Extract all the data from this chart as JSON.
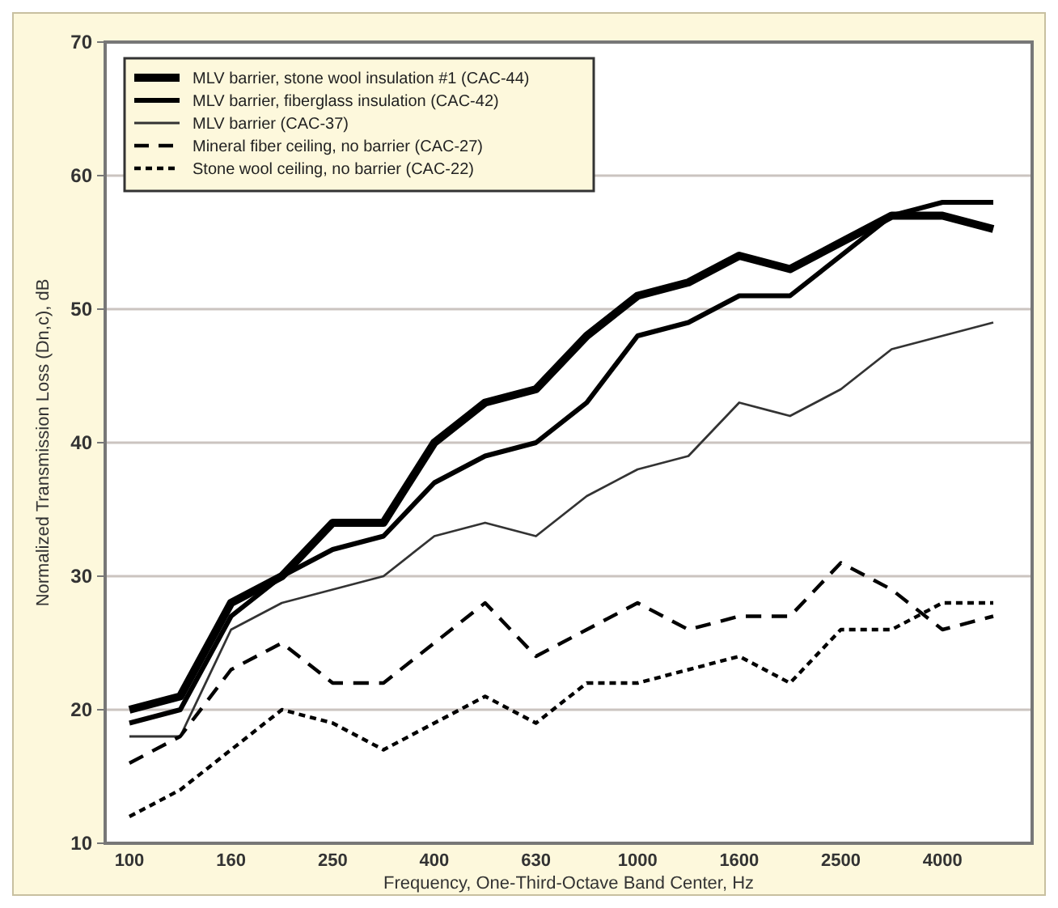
{
  "chart_data": {
    "type": "line",
    "xlabel": "Frequency, One-Third-Octave Band Center, Hz",
    "ylabel": "Normalized Transmission Loss (Dn,c), dB",
    "categories": [
      "100",
      null,
      "160",
      null,
      "250",
      null,
      "400",
      null,
      "630",
      null,
      "1000",
      null,
      "1600",
      null,
      "2500",
      null,
      "4000",
      null
    ],
    "ylim": [
      10,
      70
    ],
    "yticks": [
      10,
      20,
      30,
      40,
      50,
      60,
      70
    ],
    "grid": "y",
    "legend": "top left",
    "marker": "none",
    "series": [
      {
        "name": "MLV barrier, stone wool insulation #1 (CAC-44)",
        "color": "#000000",
        "line_style": "solid",
        "values": [
          20,
          21,
          28,
          30,
          34,
          34,
          40,
          43,
          44,
          48,
          51,
          52,
          54,
          53,
          55,
          57,
          57,
          56
        ]
      },
      {
        "name": "MLV barrier, fiberglass insulation (CAC-42)",
        "color": "#000000",
        "line_style": "solid",
        "values": [
          19,
          20,
          27,
          30,
          32,
          33,
          37,
          39,
          40,
          43,
          48,
          49,
          51,
          51,
          54,
          57,
          58,
          58
        ]
      },
      {
        "name": "MLV barrier (CAC-37)",
        "color": "#333333",
        "line_style": "solid",
        "values": [
          18,
          18,
          26,
          28,
          29,
          30,
          33,
          34,
          33,
          36,
          38,
          39,
          43,
          42,
          44,
          47,
          48,
          49
        ]
      },
      {
        "name": "Mineral fiber ceiling, no barrier  (CAC-27)",
        "color": "#000000",
        "line_style": "dashed",
        "values": [
          16,
          18,
          23,
          25,
          22,
          22,
          25,
          28,
          24,
          26,
          28,
          26,
          27,
          27,
          31,
          29,
          26,
          27
        ]
      },
      {
        "name": "Stone wool ceiling, no barrier  (CAC-22)",
        "color": "#000000",
        "line_style": "dotted",
        "values": [
          12,
          14,
          17,
          20,
          19,
          17,
          19,
          21,
          19,
          22,
          22,
          23,
          24,
          22,
          26,
          26,
          28,
          28
        ]
      }
    ]
  }
}
